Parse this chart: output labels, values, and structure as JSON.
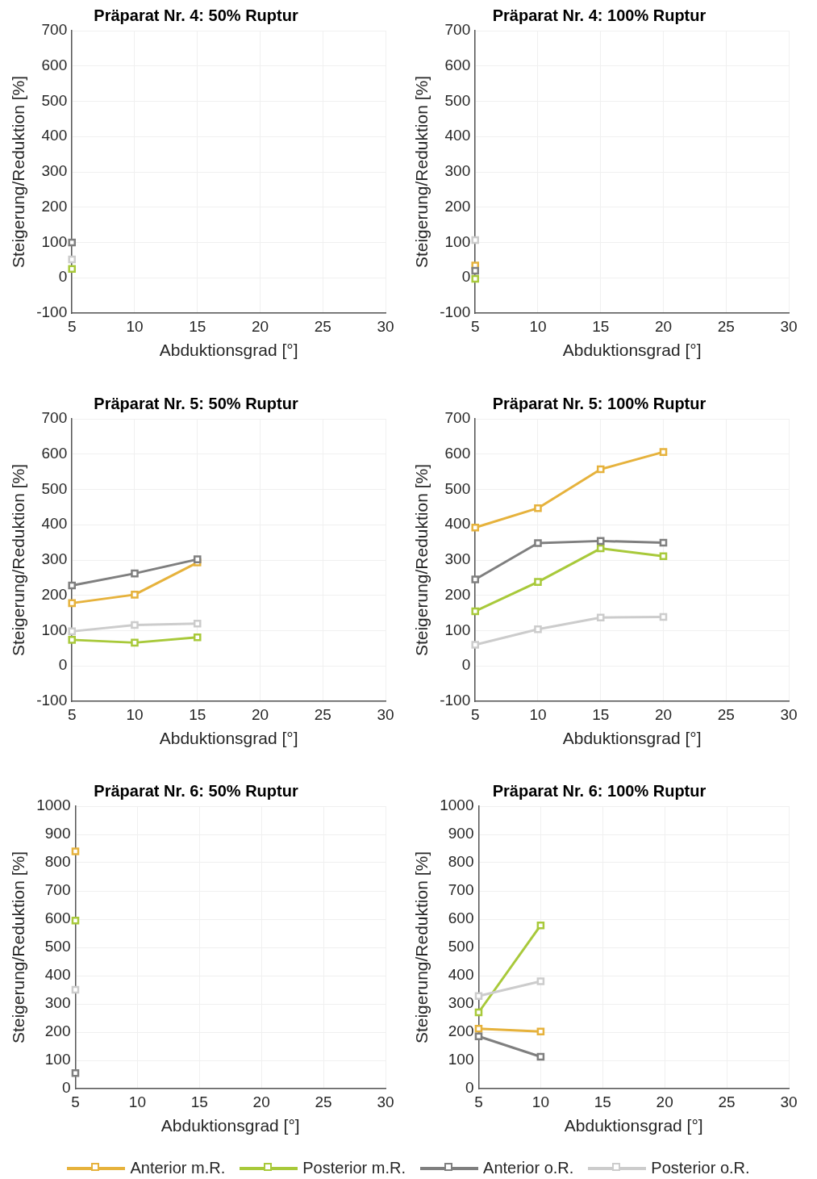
{
  "chart_data": [
    {
      "type": "line",
      "title": "Präparat Nr. 4: 50% Ruptur",
      "xlabel": "Abduktionsgrad [°]",
      "ylabel": "Steigerung/Reduktion [%]",
      "x": [
        5
      ],
      "xlim": [
        5,
        30
      ],
      "xticks": [
        5,
        10,
        15,
        20,
        25,
        30
      ],
      "ylim": [
        -100,
        700
      ],
      "yticks": [
        -100,
        0,
        100,
        200,
        300,
        400,
        500,
        600,
        700
      ],
      "grid": true,
      "marker": "square",
      "legend": "bottom",
      "series": [
        {
          "name": "Anterior m.R.",
          "color": "#e6b23c",
          "values": [
            null
          ]
        },
        {
          "name": "Posterior m.R.",
          "color": "#a8c93a",
          "values": [
            25
          ]
        },
        {
          "name": "Anterior o.R.",
          "color": "#7f7f7f",
          "values": [
            100
          ]
        },
        {
          "name": "Posterior o.R.",
          "color": "#cccccc",
          "values": [
            52
          ]
        }
      ]
    },
    {
      "type": "line",
      "title": "Präparat Nr. 4: 100% Ruptur",
      "xlabel": "Abduktionsgrad [°]",
      "ylabel": "Steigerung/Reduktion [%]",
      "x": [
        5
      ],
      "xlim": [
        5,
        30
      ],
      "xticks": [
        5,
        10,
        15,
        20,
        25,
        30
      ],
      "ylim": [
        -100,
        700
      ],
      "yticks": [
        -100,
        0,
        100,
        200,
        300,
        400,
        500,
        600,
        700
      ],
      "grid": true,
      "marker": "square",
      "series": [
        {
          "color": "#e6b23c",
          "values": [
            35
          ]
        },
        {
          "color": "#a8c93a",
          "values": [
            -3
          ]
        },
        {
          "color": "#7f7f7f",
          "values": [
            20
          ]
        },
        {
          "color": "#cccccc",
          "values": [
            107
          ]
        }
      ]
    },
    {
      "type": "line",
      "title": "Präparat Nr. 5: 50% Ruptur",
      "xlabel": "Abduktionsgrad [°]",
      "ylabel": "Steigerung/Reduktion [%]",
      "x": [
        5,
        10,
        15
      ],
      "xlim": [
        5,
        30
      ],
      "xticks": [
        5,
        10,
        15,
        20,
        25,
        30
      ],
      "ylim": [
        -100,
        700
      ],
      "yticks": [
        -100,
        0,
        100,
        200,
        300,
        400,
        500,
        600,
        700
      ],
      "grid": true,
      "marker": "square",
      "series": [
        {
          "color": "#e6b23c",
          "values": [
            178,
            202,
            293
          ]
        },
        {
          "color": "#a8c93a",
          "values": [
            74,
            66,
            81
          ]
        },
        {
          "color": "#7f7f7f",
          "values": [
            228,
            262,
            302
          ]
        },
        {
          "color": "#cccccc",
          "values": [
            98,
            116,
            120
          ]
        }
      ]
    },
    {
      "type": "line",
      "title": "Präparat Nr. 5: 100% Ruptur",
      "xlabel": "Abduktionsgrad [°]",
      "ylabel": "Steigerung/Reduktion [%]",
      "x": [
        5,
        10,
        15,
        20
      ],
      "xlim": [
        5,
        30
      ],
      "xticks": [
        5,
        10,
        15,
        20,
        25,
        30
      ],
      "ylim": [
        -100,
        700
      ],
      "yticks": [
        -100,
        0,
        100,
        200,
        300,
        400,
        500,
        600,
        700
      ],
      "grid": true,
      "marker": "square",
      "series": [
        {
          "color": "#e6b23c",
          "values": [
            392,
            447,
            557,
            606
          ]
        },
        {
          "color": "#a8c93a",
          "values": [
            155,
            238,
            333,
            311
          ]
        },
        {
          "color": "#7f7f7f",
          "values": [
            245,
            348,
            354,
            349
          ]
        },
        {
          "color": "#cccccc",
          "values": [
            60,
            104,
            137,
            139
          ]
        }
      ]
    },
    {
      "type": "line",
      "title": "Präparat Nr. 6: 50% Ruptur",
      "xlabel": "Abduktionsgrad [°]",
      "ylabel": "Steigerung/Reduktion [%]",
      "x": [
        5
      ],
      "xlim": [
        5,
        30
      ],
      "xticks": [
        5,
        10,
        15,
        20,
        25,
        30
      ],
      "ylim": [
        0,
        1000
      ],
      "yticks": [
        0,
        100,
        200,
        300,
        400,
        500,
        600,
        700,
        800,
        900,
        1000
      ],
      "grid": true,
      "marker": "square",
      "series": [
        {
          "color": "#e6b23c",
          "values": [
            840
          ]
        },
        {
          "color": "#a8c93a",
          "values": [
            595
          ]
        },
        {
          "color": "#7f7f7f",
          "values": [
            55
          ]
        },
        {
          "color": "#cccccc",
          "values": [
            350
          ]
        }
      ]
    },
    {
      "type": "line",
      "title": "Präparat Nr. 6: 100% Ruptur",
      "xlabel": "Abduktionsgrad [°]",
      "ylabel": "Steigerung/Reduktion [%]",
      "x": [
        5,
        10
      ],
      "xlim": [
        5,
        30
      ],
      "xticks": [
        5,
        10,
        15,
        20,
        25,
        30
      ],
      "ylim": [
        0,
        1000
      ],
      "yticks": [
        0,
        100,
        200,
        300,
        400,
        500,
        600,
        700,
        800,
        900,
        1000
      ],
      "grid": true,
      "marker": "square",
      "series": [
        {
          "color": "#e6b23c",
          "values": [
            212,
            202
          ]
        },
        {
          "color": "#a8c93a",
          "values": [
            270,
            578
          ]
        },
        {
          "color": "#7f7f7f",
          "values": [
            185,
            113
          ]
        },
        {
          "color": "#cccccc",
          "values": [
            328,
            380
          ]
        }
      ]
    }
  ]
}
